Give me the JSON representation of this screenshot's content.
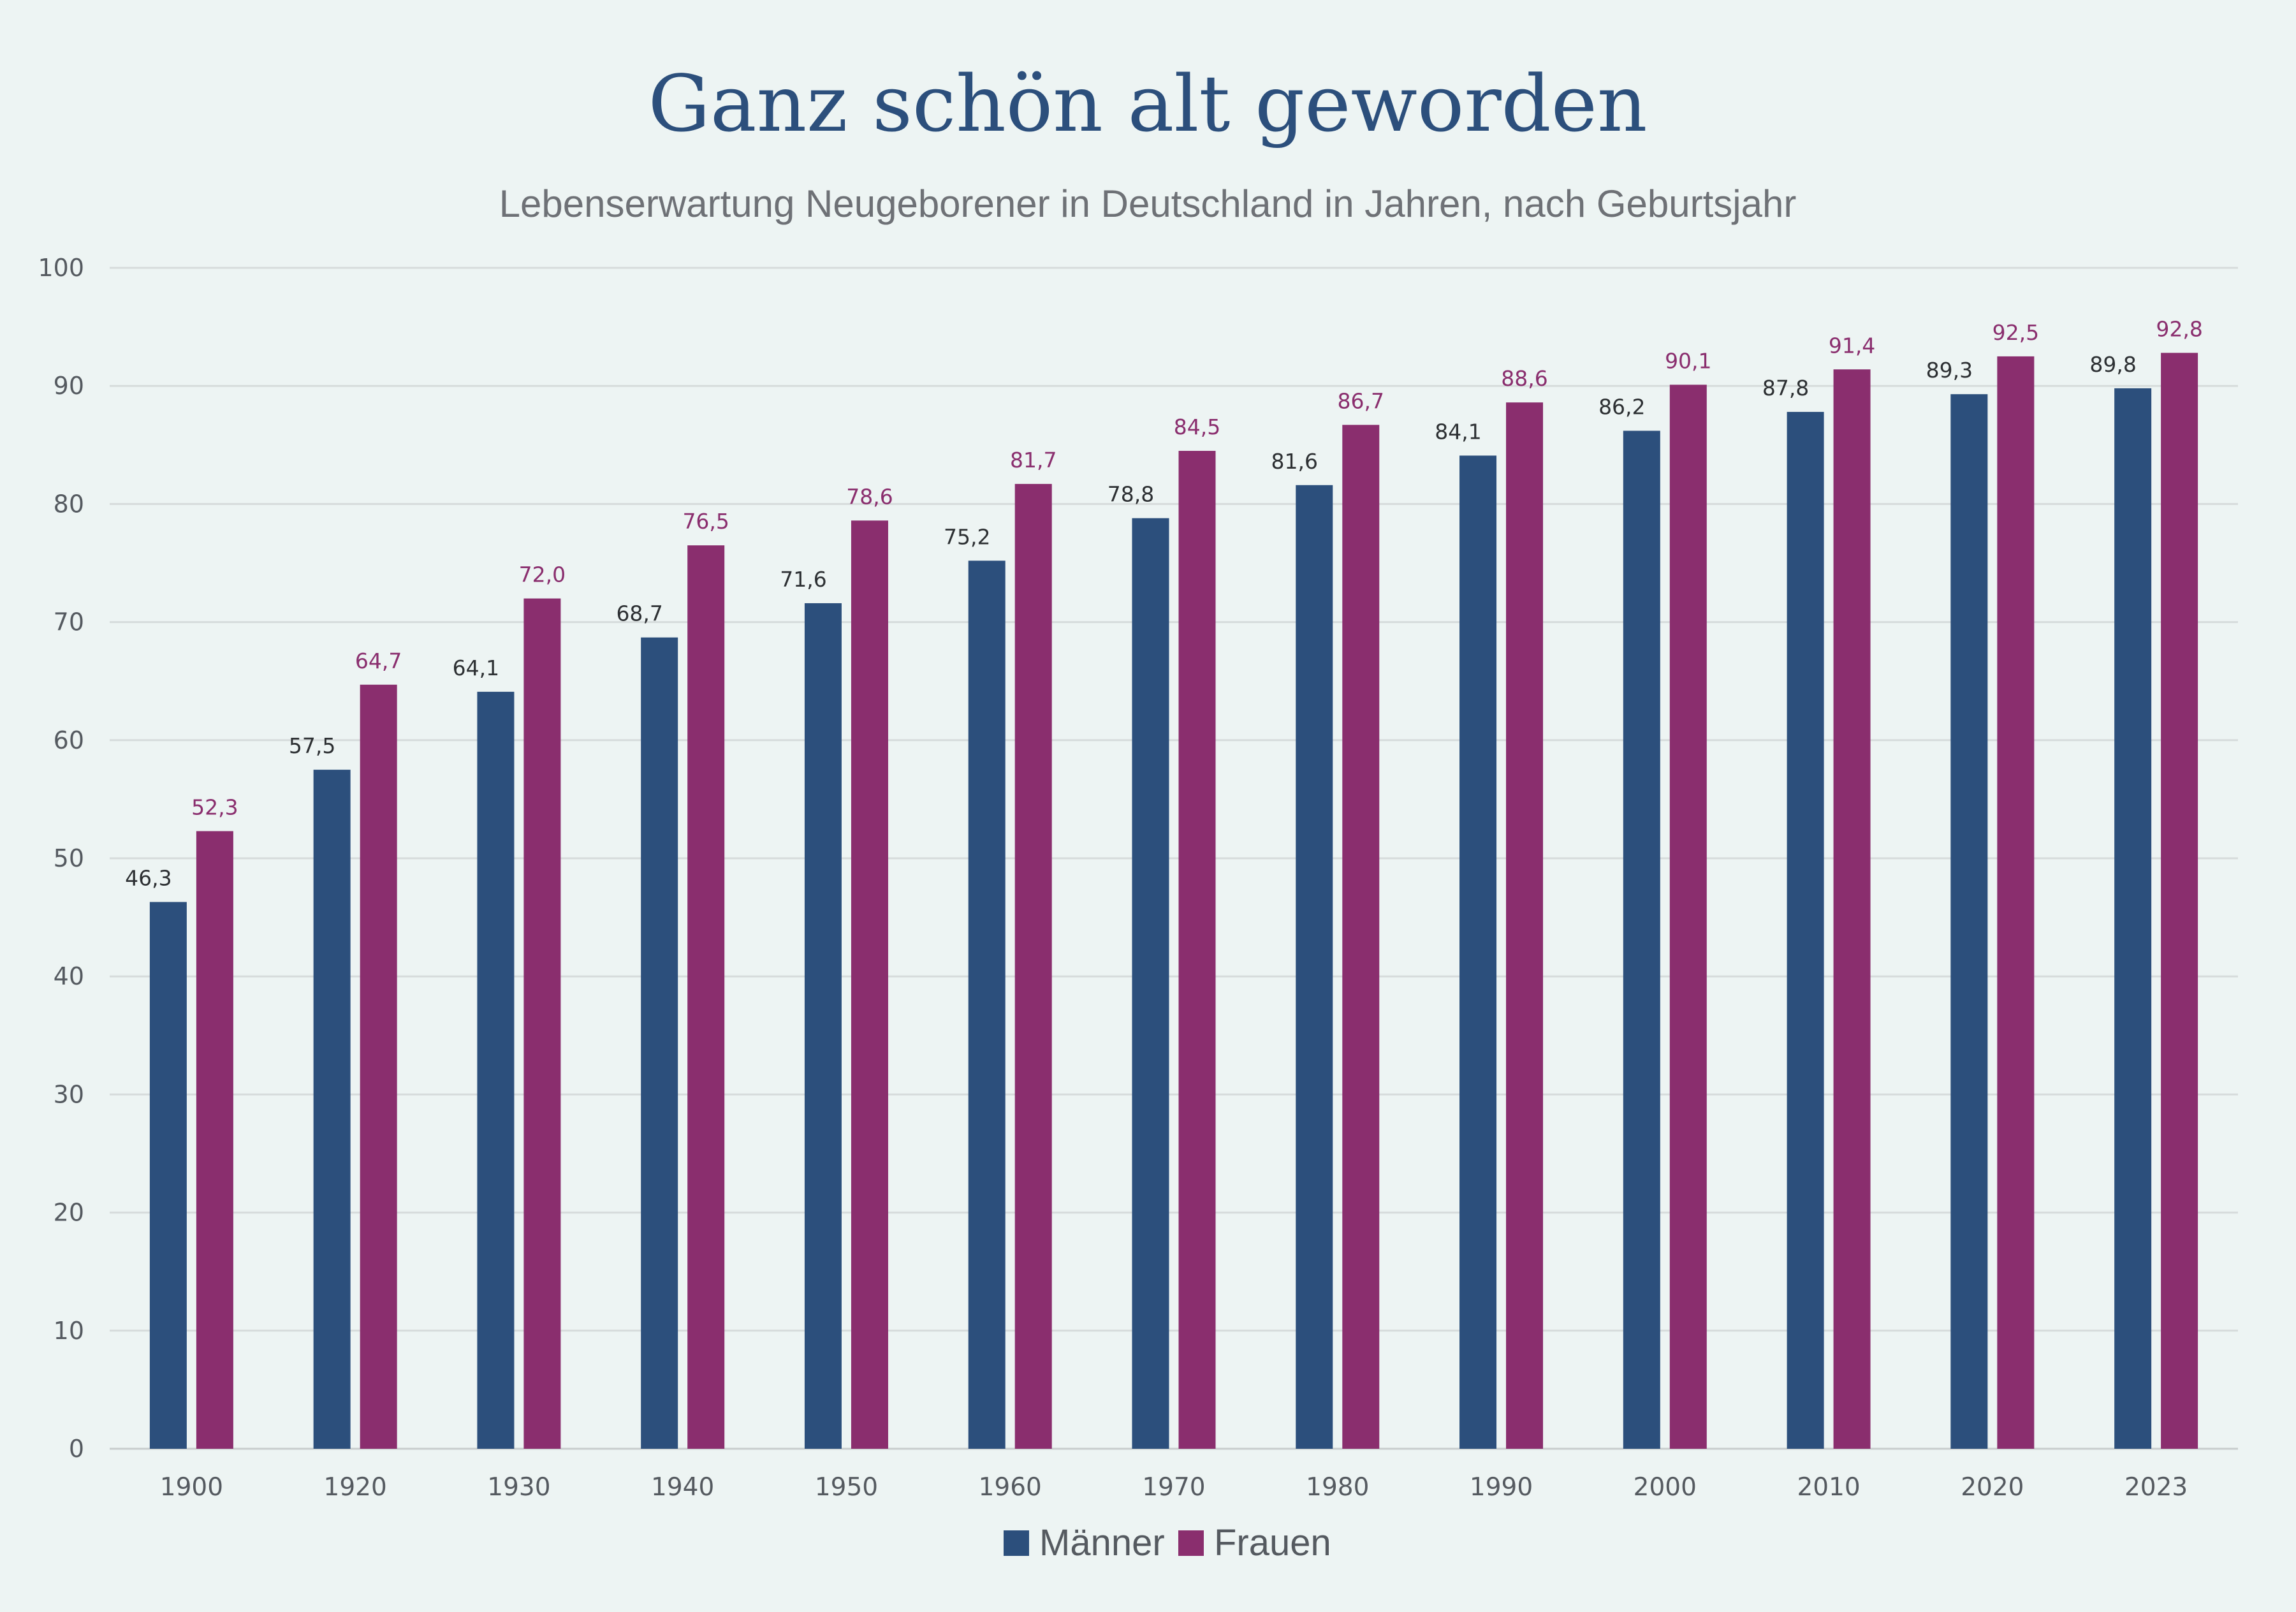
{
  "chart_data": {
    "type": "bar",
    "title": "Ganz schön alt geworden",
    "subtitle": "Lebenserwartung Neugeborener in Deutschland in Jahren, nach Geburtsjahr",
    "categories": [
      "1900",
      "1920",
      "1930",
      "1940",
      "1950",
      "1960",
      "1970",
      "1980",
      "1990",
      "2000",
      "2010",
      "2020",
      "2023"
    ],
    "series": [
      {
        "name": "Männer",
        "color": "#2c4f7c",
        "values": [
          46.3,
          57.5,
          64.1,
          68.7,
          71.6,
          75.2,
          78.8,
          81.6,
          84.1,
          86.2,
          87.8,
          89.3,
          89.8
        ],
        "labels": [
          "46,3",
          "57,5",
          "64,1",
          "68,7",
          "71,6",
          "75,2",
          "78,8",
          "81,6",
          "84,1",
          "86,2",
          "87,8",
          "89,3",
          "89,8"
        ]
      },
      {
        "name": "Frauen",
        "color": "#8a2e6e",
        "values": [
          52.3,
          64.7,
          72.0,
          76.5,
          78.6,
          81.7,
          84.5,
          86.7,
          88.6,
          90.1,
          91.4,
          92.5,
          92.8
        ],
        "labels": [
          "52,3",
          "64,7",
          "72,0",
          "76,5",
          "78,6",
          "81,7",
          "84,5",
          "86,7",
          "88,6",
          "90,1",
          "91,4",
          "92,5",
          "92,8"
        ]
      }
    ],
    "ylim": [
      0,
      100
    ],
    "yticks": [
      "0",
      "10",
      "20",
      "30",
      "40",
      "50",
      "60",
      "70",
      "80",
      "90",
      "100"
    ],
    "grid": true,
    "legend_position": "bottom-center"
  }
}
